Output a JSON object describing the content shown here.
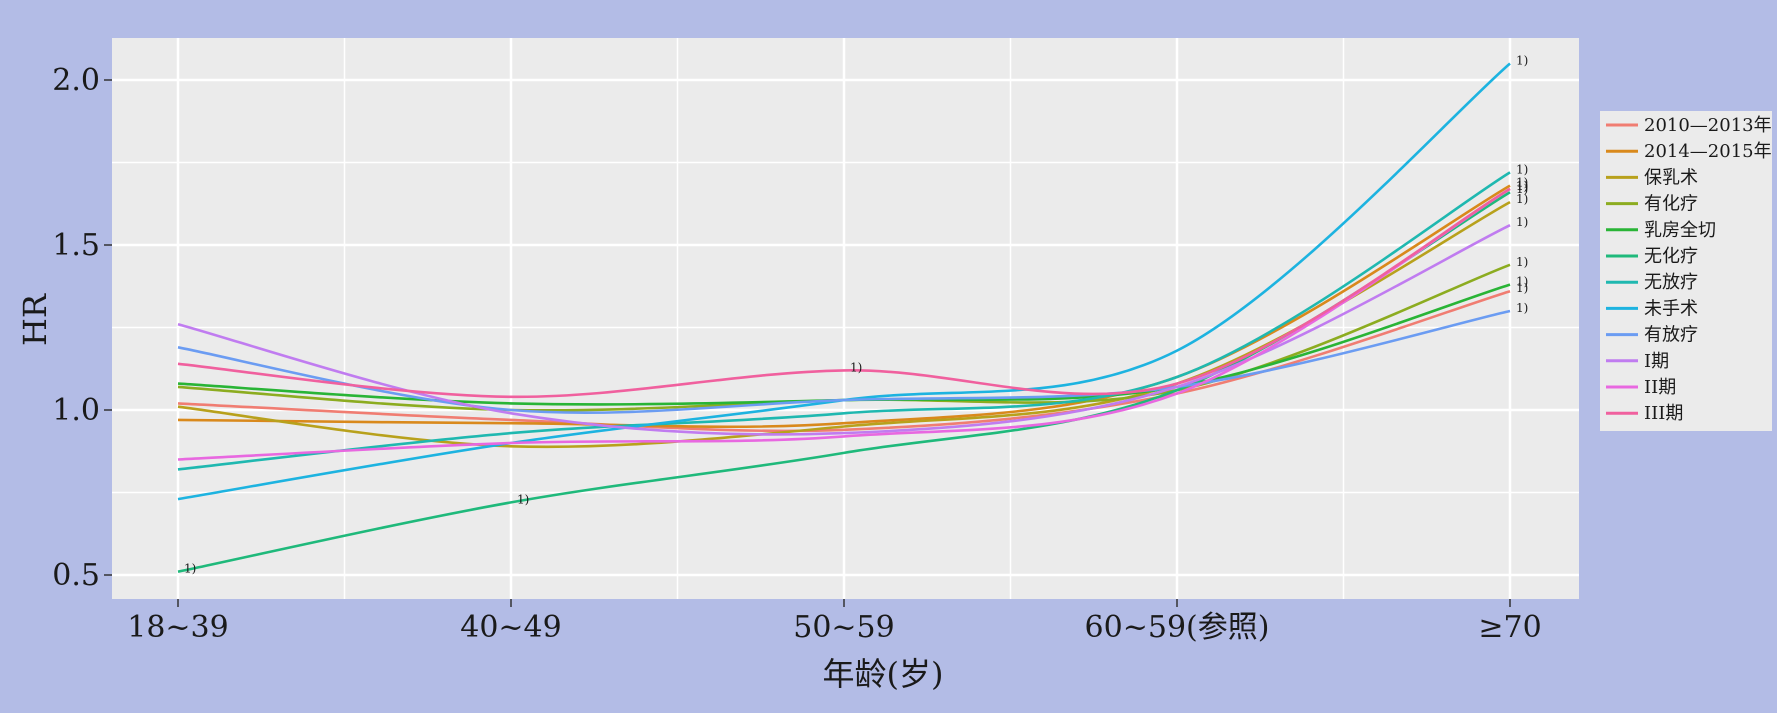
{
  "chart_data": {
    "type": "line",
    "title": "",
    "xlabel": "年龄(岁)",
    "ylabel": "HR",
    "categories": [
      "18~39",
      "40~49",
      "50~59",
      "60~59(参照)",
      "≥70"
    ],
    "yticks": [
      "0.5",
      "1.0",
      "1.5",
      "2.0"
    ],
    "ylim": [
      0.45,
      2.15
    ],
    "grid": true,
    "legend_position": "right",
    "note_mark": "1)",
    "series": [
      {
        "name": "2010—2013年",
        "color": "#f07d72",
        "values": [
          1.02,
          0.97,
          0.94,
          1.05,
          1.36
        ],
        "notes": [
          4
        ]
      },
      {
        "name": "2014—2015年",
        "color": "#d9891c",
        "values": [
          0.97,
          0.96,
          0.96,
          1.1,
          1.68
        ],
        "notes": [
          4
        ]
      },
      {
        "name": "保乳术",
        "color": "#b8a11c",
        "values": [
          1.01,
          0.89,
          0.95,
          1.08,
          1.63
        ],
        "notes": [
          4
        ]
      },
      {
        "name": "有化疗",
        "color": "#8cac20",
        "values": [
          1.07,
          1.0,
          1.03,
          1.06,
          1.44
        ],
        "notes": [
          4
        ]
      },
      {
        "name": "乳房全切",
        "color": "#29b436",
        "values": [
          1.08,
          1.02,
          1.03,
          1.07,
          1.38
        ],
        "notes": [
          4
        ]
      },
      {
        "name": "无化疗",
        "color": "#1fb97b",
        "values": [
          0.51,
          0.72,
          0.87,
          1.06,
          1.66
        ],
        "notes": [
          0,
          1,
          4
        ]
      },
      {
        "name": "无放疗",
        "color": "#1fb8b0",
        "values": [
          0.82,
          0.93,
          0.99,
          1.1,
          1.72
        ],
        "notes": [
          4
        ]
      },
      {
        "name": "未手术",
        "color": "#1db3e0",
        "values": [
          0.73,
          0.9,
          1.03,
          1.18,
          2.05
        ],
        "notes": [
          4
        ]
      },
      {
        "name": "有放疗",
        "color": "#6b9cf2",
        "values": [
          1.19,
          1.0,
          1.03,
          1.07,
          1.3
        ],
        "notes": [
          4
        ]
      },
      {
        "name": "I期",
        "color": "#c07cf0",
        "values": [
          1.26,
          0.99,
          0.93,
          1.07,
          1.56
        ],
        "notes": [
          4
        ]
      },
      {
        "name": "II期",
        "color": "#e868e0",
        "values": [
          0.85,
          0.9,
          0.92,
          1.05,
          1.67
        ],
        "notes": [
          4
        ]
      },
      {
        "name": "III期",
        "color": "#f0609e",
        "values": [
          1.14,
          1.04,
          1.12,
          1.08,
          1.67
        ],
        "notes": [
          2,
          4
        ]
      }
    ]
  }
}
